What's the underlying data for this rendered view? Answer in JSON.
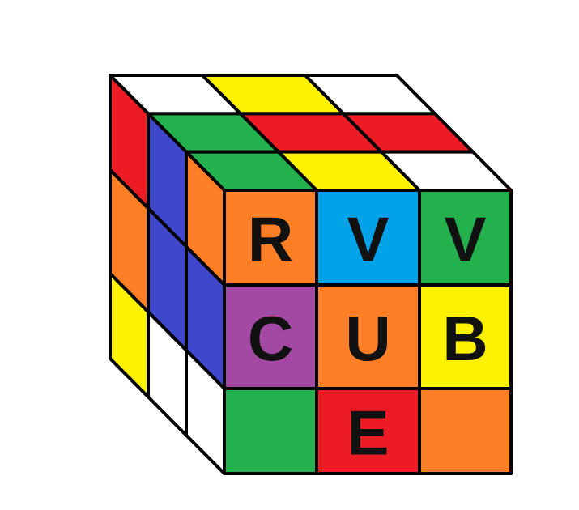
{
  "cube": {
    "colors": {
      "white": "#ffffff",
      "yellow": "#fff200",
      "red": "#ed1c24",
      "green": "#22b14c",
      "blue": "#3f48cc",
      "orange": "#ff7f27",
      "sky": "#00a2e8",
      "purple": "#a349a4"
    },
    "top_face": [
      [
        "white",
        "yellow",
        "white"
      ],
      [
        "green",
        "red",
        "red"
      ],
      [
        "green",
        "yellow",
        "white"
      ]
    ],
    "left_face": [
      [
        "red",
        "blue",
        "orange"
      ],
      [
        "orange",
        "blue",
        "blue"
      ],
      [
        "yellow",
        "white",
        "white"
      ]
    ],
    "front_face": [
      [
        "orange",
        "sky",
        "green"
      ],
      [
        "purple",
        "orange",
        "yellow"
      ],
      [
        "green",
        "red",
        "orange"
      ]
    ],
    "front_letters": [
      [
        "R",
        "V",
        "V"
      ],
      [
        "C",
        "U",
        "B"
      ],
      [
        "",
        "E",
        ""
      ]
    ]
  }
}
